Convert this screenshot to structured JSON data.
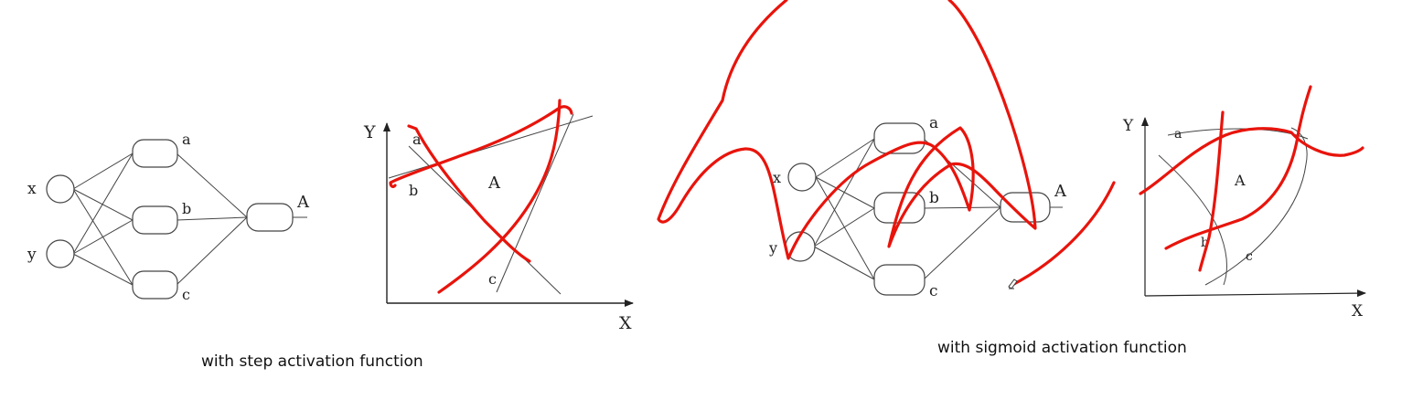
{
  "colors": {
    "ink": "#e8140c",
    "line": "#444444",
    "text": "#222222"
  },
  "left_panel": {
    "network": {
      "inputs": [
        "x",
        "y"
      ],
      "hidden": [
        "a",
        "b",
        "c"
      ],
      "output": "A"
    },
    "plot": {
      "y_axis": "Y",
      "x_axis": "X",
      "line_labels": [
        "a",
        "b",
        "c"
      ],
      "region": "A"
    },
    "caption": "with step activation function"
  },
  "right_panel": {
    "network": {
      "inputs": [
        "x",
        "y"
      ],
      "hidden": [
        "a",
        "b",
        "c"
      ],
      "output": "A"
    },
    "plot": {
      "y_axis": "Y",
      "x_axis": "X",
      "curve_labels": [
        "a",
        "b",
        "c"
      ],
      "region": "A"
    },
    "caption": "with sigmoid activation function"
  },
  "annotation_icon": "pen-cursor-icon"
}
